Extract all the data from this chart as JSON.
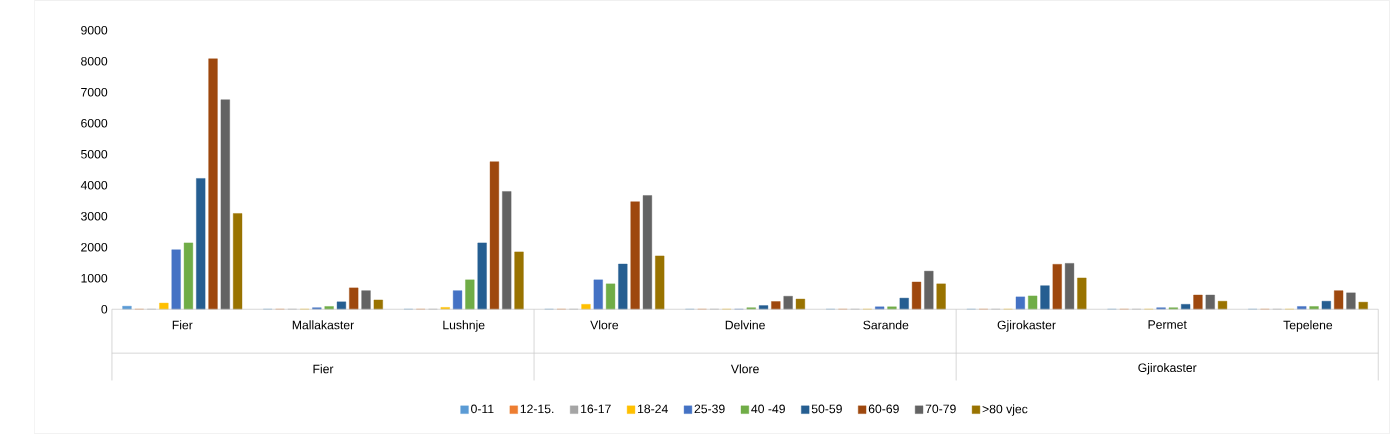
{
  "chart_data": {
    "type": "bar",
    "categories": [
      "Fier",
      "Mallakaster",
      "Lushnje",
      "Vlore",
      "Delvine",
      "Sarande",
      "Gjirokaster",
      "Permet",
      "Tepelene"
    ],
    "annotations": [
      "Fier",
      "Vlore",
      "Gjirokaster"
    ],
    "ylim": [
      0,
      9000
    ],
    "yticks": [
      0,
      1000,
      2000,
      3000,
      4000,
      5000,
      6000,
      7000,
      8000,
      9000
    ],
    "grid": false,
    "legend": "bottom",
    "series": [
      {
        "name": "0-11",
        "color": "#5b9bd5",
        "values": [
          100,
          0,
          0,
          0,
          0,
          0,
          0,
          0,
          0
        ]
      },
      {
        "name": "12-15.",
        "color": "#ed7d31",
        "values": [
          0,
          0,
          0,
          0,
          0,
          0,
          0,
          0,
          0
        ]
      },
      {
        "name": "16-17",
        "color": "#a5a5a5",
        "values": [
          0,
          0,
          0,
          0,
          0,
          0,
          0,
          0,
          0
        ]
      },
      {
        "name": "18-24",
        "color": "#ffc000",
        "values": [
          200,
          0,
          60,
          160,
          0,
          0,
          0,
          0,
          0
        ]
      },
      {
        "name": "25-39",
        "color": "#4472c4",
        "values": [
          1920,
          50,
          600,
          950,
          0,
          80,
          400,
          50,
          90
        ]
      },
      {
        "name": "40 -49",
        "color": "#70ad47",
        "values": [
          2140,
          90,
          950,
          820,
          50,
          80,
          430,
          50,
          90
        ]
      },
      {
        "name": "50-59",
        "color": "#255e91",
        "values": [
          4220,
          240,
          2140,
          1460,
          120,
          360,
          760,
          160,
          260
        ]
      },
      {
        "name": "60-69",
        "color": "#9e480e",
        "values": [
          8080,
          690,
          4760,
          3470,
          250,
          880,
          1450,
          460,
          600
        ]
      },
      {
        "name": "70-79",
        "color": "#636363",
        "values": [
          6760,
          600,
          3800,
          3670,
          420,
          1230,
          1480,
          460,
          530
        ]
      },
      {
        "name": ">80 vjec",
        "color": "#997300",
        "values": [
          3090,
          300,
          1850,
          1720,
          330,
          820,
          1010,
          260,
          230
        ]
      }
    ]
  }
}
